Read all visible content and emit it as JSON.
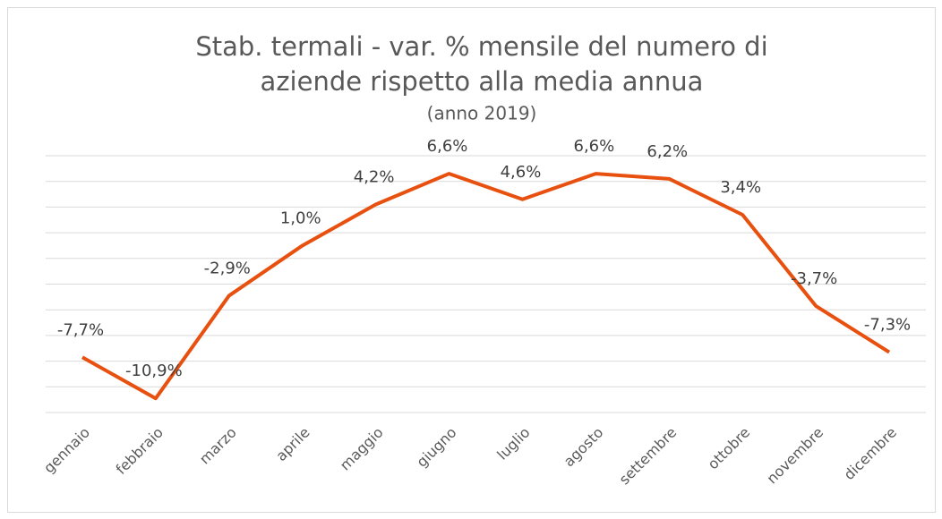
{
  "chart_data": {
    "type": "line",
    "title": [
      "Stab. termali - var. % mensile del numero di",
      "aziende rispetto alla media annua"
    ],
    "subtitle": "(anno 2019)",
    "categories": [
      "gennaio",
      "febbraio",
      "marzo",
      "aprile",
      "maggio",
      "giugno",
      "luglio",
      "agosto",
      "settembre",
      "ottobre",
      "novembre",
      "dicembre"
    ],
    "series": [
      {
        "name": "var. %",
        "color": "#e8500f",
        "values": [
          -7.7,
          -10.9,
          -2.9,
          1.0,
          4.2,
          6.6,
          4.6,
          6.6,
          6.2,
          3.4,
          -3.7,
          -7.3
        ],
        "value_labels": [
          "-7,7%",
          "-10,9%",
          "-2,9%",
          "1,0%",
          "4,2%",
          "6,6%",
          "4,6%",
          "6,6%",
          "6,2%",
          "3,4%",
          "-3,7%",
          "-7,3%"
        ]
      }
    ],
    "ylim": [
      -12,
      8
    ],
    "yticks": [
      -12,
      -10,
      -8,
      -6,
      -4,
      -2,
      0,
      2,
      4,
      6,
      8
    ],
    "grid": true
  }
}
